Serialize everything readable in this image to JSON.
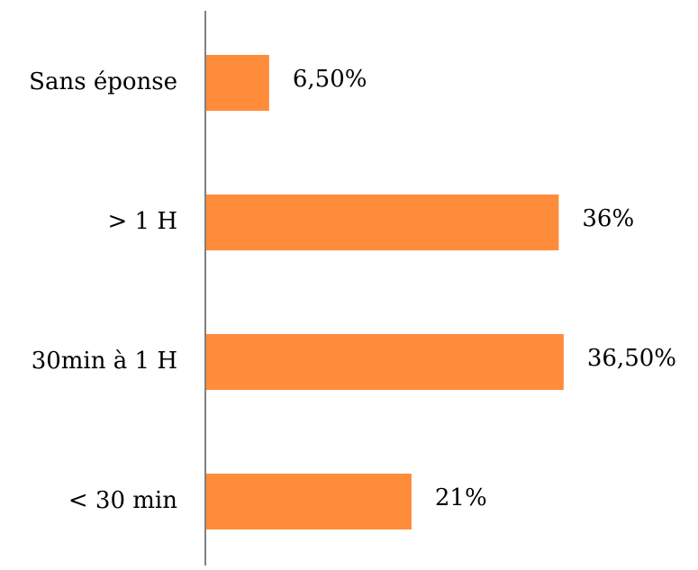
{
  "chart_data": {
    "type": "bar",
    "orientation": "horizontal",
    "categories": [
      "Sans éponse",
      "> 1 H",
      "30min à 1 H",
      "< 30 min"
    ],
    "values": [
      6.5,
      36,
      36.5,
      21
    ],
    "data_labels": [
      "6,50%",
      "36%",
      "36,50%",
      "21%"
    ],
    "xlim": [
      0,
      40
    ],
    "grid": false,
    "legend": "none",
    "bar_color": "#FF8C3A",
    "axis_color": "#808080"
  }
}
